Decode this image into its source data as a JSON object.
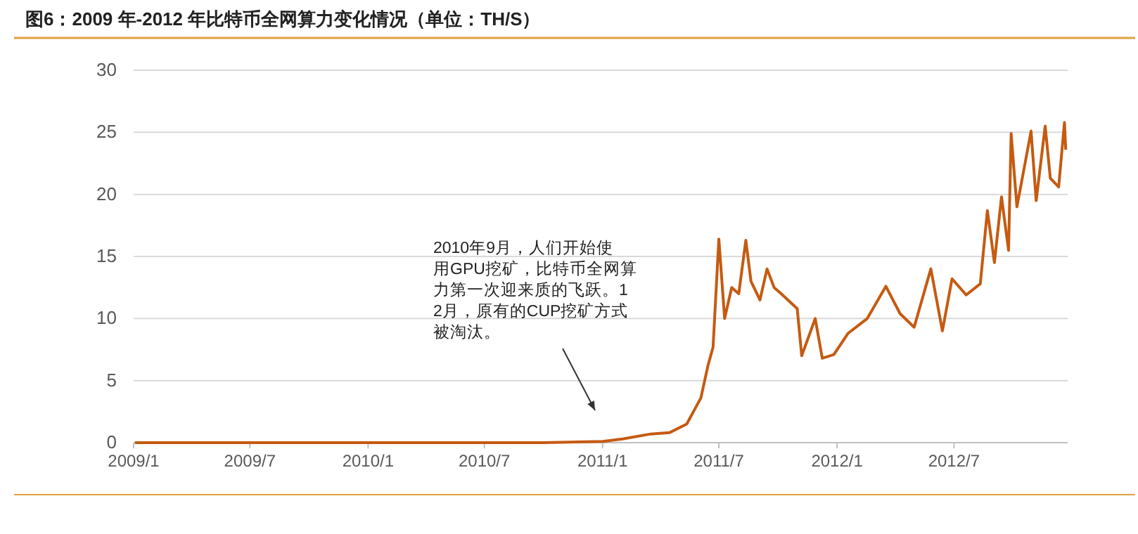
{
  "chart_data": {
    "type": "line",
    "title": "图6：2009 年-2012 年比特币全网算力变化情况（单位：TH/S）",
    "x": [
      "2009-01-03",
      "2009-07-01",
      "2010-01-01",
      "2010-07-01",
      "2010-10-01",
      "2011-01-01",
      "2011-02-01",
      "2011-03-17",
      "2011-04-15",
      "2011-05-12",
      "2011-06-03",
      "2011-06-14",
      "2011-06-22",
      "2011-07-01",
      "2011-07-10",
      "2011-07-21",
      "2011-08-01",
      "2011-08-12",
      "2011-08-20",
      "2011-09-03",
      "2011-09-14",
      "2011-09-25",
      "2011-10-06",
      "2011-10-31",
      "2011-11-07",
      "2011-11-28",
      "2011-12-09",
      "2011-12-27",
      "2012-01-18",
      "2012-02-17",
      "2012-03-17",
      "2012-04-08",
      "2012-04-30",
      "2012-05-26",
      "2012-06-13",
      "2012-06-28",
      "2012-07-20",
      "2012-08-11",
      "2012-08-22",
      "2012-09-02",
      "2012-09-13",
      "2012-09-24",
      "2012-09-28",
      "2012-10-07",
      "2012-10-29",
      "2012-11-06",
      "2012-11-20",
      "2012-11-28",
      "2012-12-11",
      "2012-12-20",
      "2012-12-22"
    ],
    "series": [
      {
        "color": "#c55a11",
        "values": [
          0,
          0,
          0,
          0,
          0,
          0.1,
          0.3,
          0.7,
          0.8,
          1.5,
          3.6,
          6.2,
          7.7,
          16.4,
          10,
          12.5,
          12,
          16.3,
          13,
          11.5,
          14,
          12.5,
          12,
          10.8,
          7,
          10,
          6.8,
          7.1,
          8.8,
          10,
          12.6,
          10.4,
          9.3,
          14,
          9,
          13.2,
          11.9,
          12.8,
          18.7,
          14.5,
          19.8,
          15.5,
          24.9,
          19,
          25.1,
          19.5,
          25.5,
          21.3,
          20.6,
          25.8,
          23.6
        ]
      }
    ],
    "xlim": [
      "2009-01-01",
      "2012-12-25"
    ],
    "xticks": [
      {
        "value": "2009-01-01",
        "label": "2009/1"
      },
      {
        "value": "2009-07-01",
        "label": "2009/7"
      },
      {
        "value": "2010-01-01",
        "label": "2010/1"
      },
      {
        "value": "2010-07-01",
        "label": "2010/7"
      },
      {
        "value": "2011-01-01",
        "label": "2011/1"
      },
      {
        "value": "2011-07-01",
        "label": "2011/7"
      },
      {
        "value": "2012-01-01",
        "label": "2012/1"
      },
      {
        "value": "2012-07-01",
        "label": "2012/7"
      }
    ],
    "ylim": [
      0,
      30
    ],
    "yticks": [
      0,
      5,
      10,
      15,
      20,
      25,
      30
    ],
    "grid": "y",
    "line_style": "solid",
    "annotations": [
      "2010年9月，人们开始使用GPU挖矿，比特币全网算力第一次迎来质的飞跃。12月，原有的CUP挖矿方式被淘汰。"
    ]
  }
}
